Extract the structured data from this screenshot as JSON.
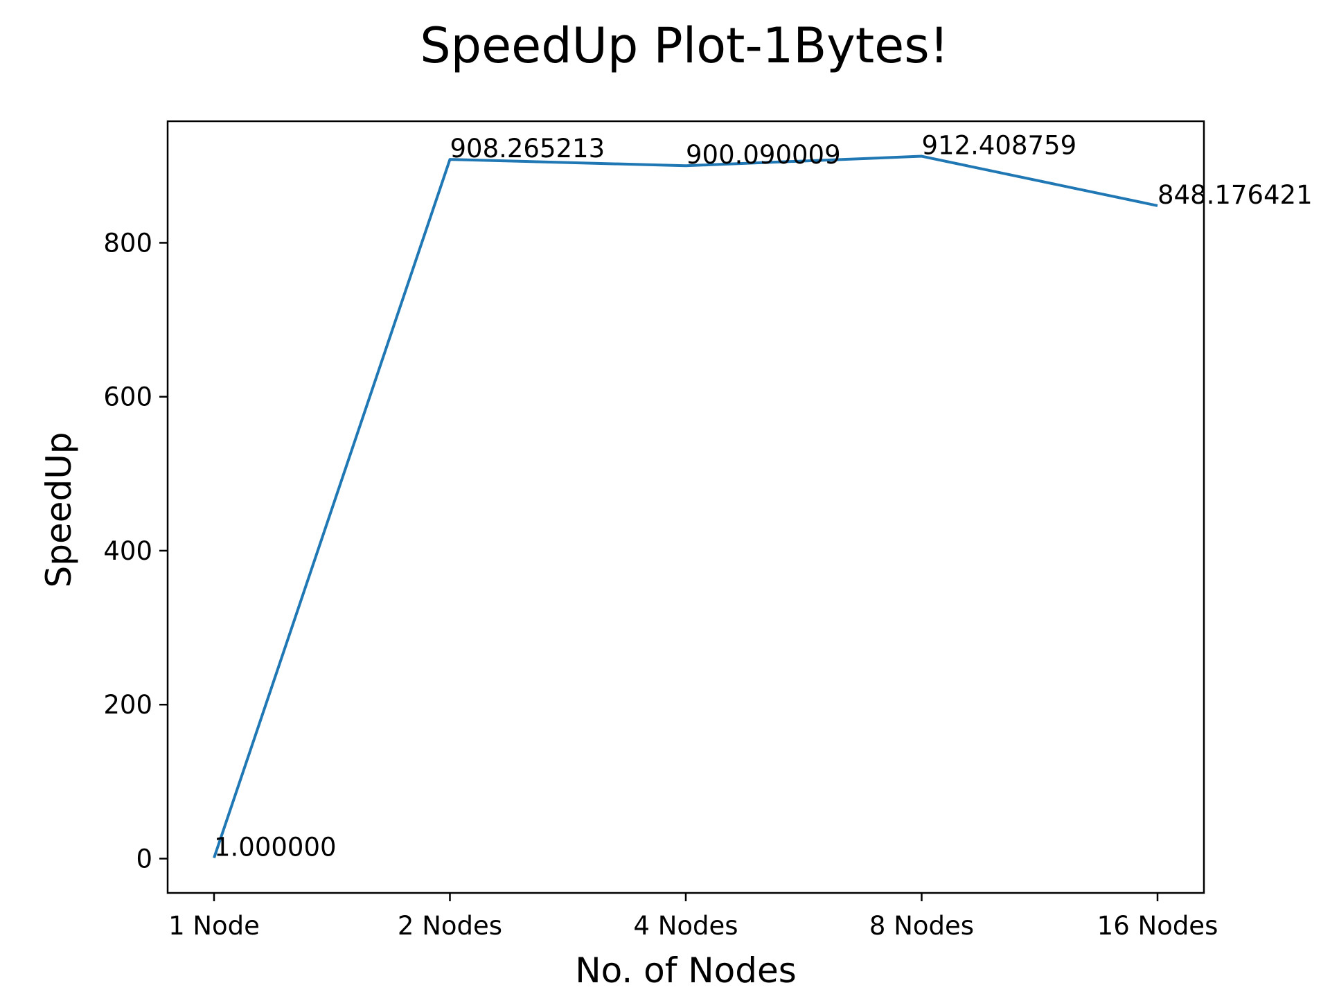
{
  "chart_data": {
    "type": "line",
    "title": "SpeedUp Plot-1Bytes!",
    "xlabel": "No. of Nodes",
    "ylabel": "SpeedUp",
    "categories": [
      "1 Node",
      "2 Nodes",
      "4 Nodes",
      "8 Nodes",
      "16 Nodes"
    ],
    "series": [
      {
        "values": [
          1.0,
          908.265213,
          900.090009,
          912.408759,
          848.176421
        ],
        "labels": [
          "1.000000",
          "908.265213",
          "900.090009",
          "912.408759",
          "848.176421"
        ],
        "color": "#1f77b4"
      }
    ],
    "yticks": [
      0,
      200,
      400,
      600,
      800
    ],
    "ytick_labels": [
      "0",
      "200",
      "400",
      "600",
      "800"
    ],
    "ylim": [
      -44.6,
      957.9
    ],
    "grid": false,
    "legend": "none"
  }
}
